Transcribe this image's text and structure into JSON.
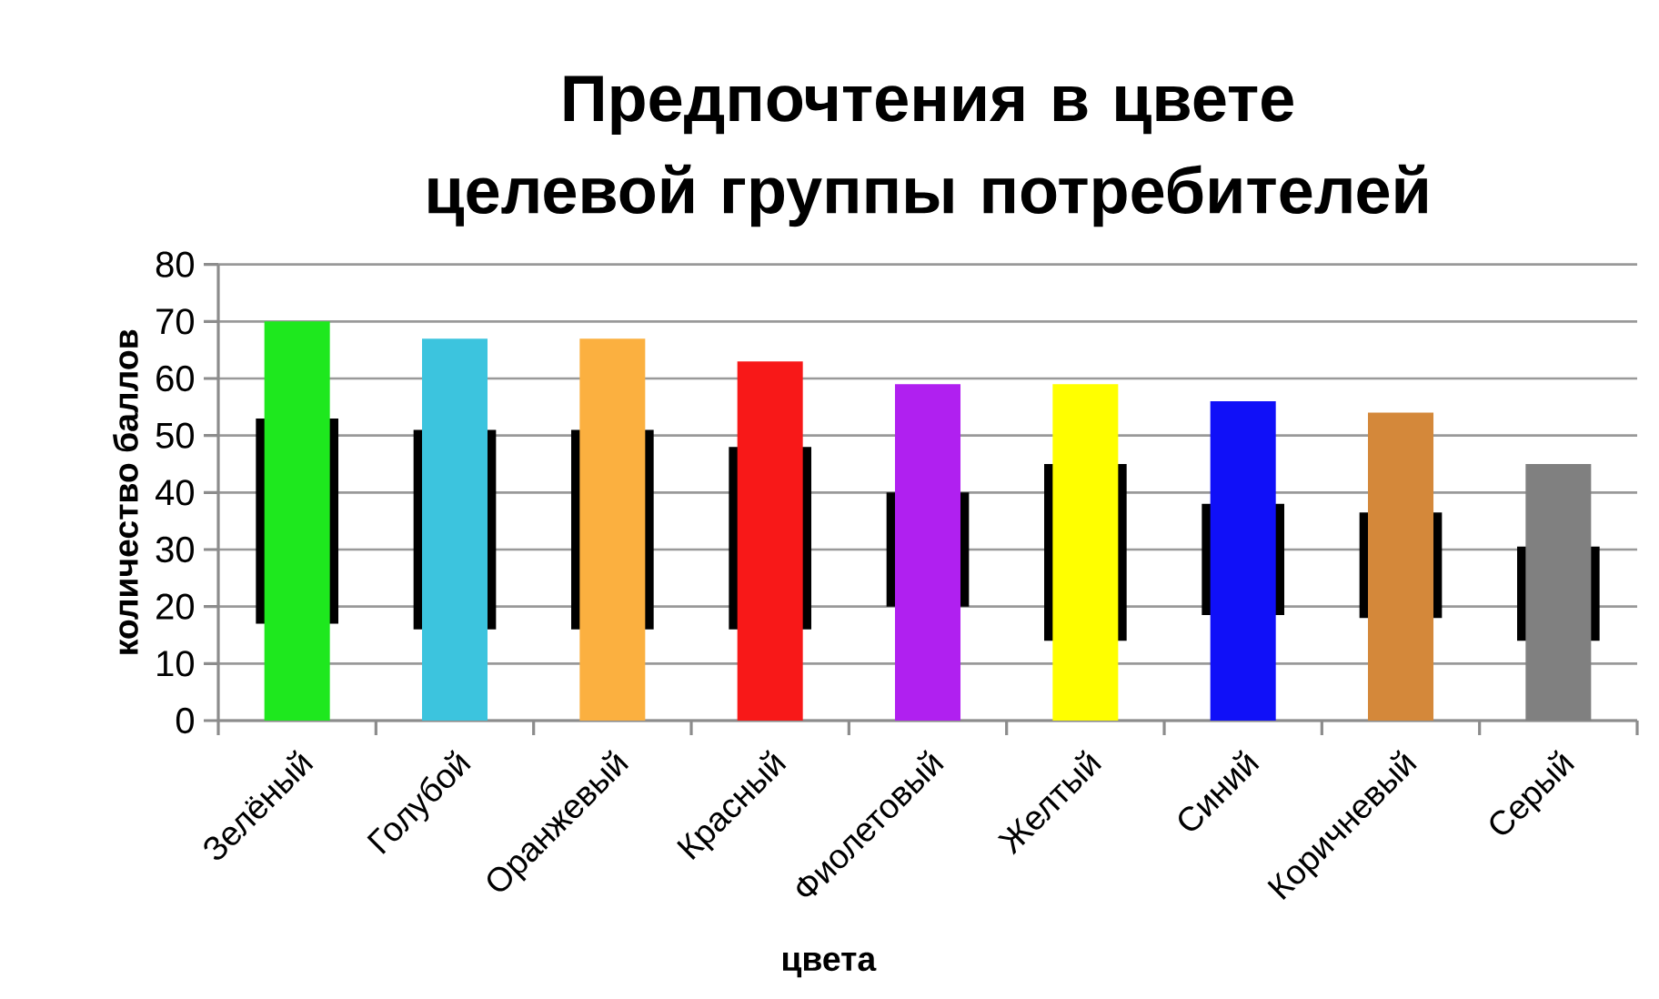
{
  "chart_data": {
    "type": "bar",
    "title": "Предпочтения в цвете целевой группы потребителей",
    "xlabel": "цвета",
    "ylabel": "количество баллов",
    "categories": [
      "Зелёный",
      "Голубой",
      "Оранжевый",
      "Красный",
      "Фиолетовый",
      "Желтый",
      "Синий",
      "Коричневый",
      "Серый"
    ],
    "series": [
      {
        "colors": [
          "#1ee81e",
          "#3cc4de",
          "#fbb040",
          "#f81818",
          "#b020f0",
          "#ffff00",
          "#1010f8",
          "#d4883a",
          "#808080"
        ],
        "values": [
          70,
          67,
          67,
          63,
          59,
          59,
          56,
          54,
          45
        ]
      },
      {
        "color": "#000000",
        "base": [
          17,
          16,
          16,
          16,
          20,
          14,
          18.5,
          18,
          14
        ],
        "values": [
          36,
          35,
          35,
          32,
          20,
          31,
          19.5,
          18.5,
          16.5
        ]
      }
    ],
    "ylim": [
      0,
      80
    ],
    "yticks": [
      0,
      10,
      20,
      30,
      40,
      50,
      60,
      70,
      80
    ],
    "grid": "y"
  }
}
